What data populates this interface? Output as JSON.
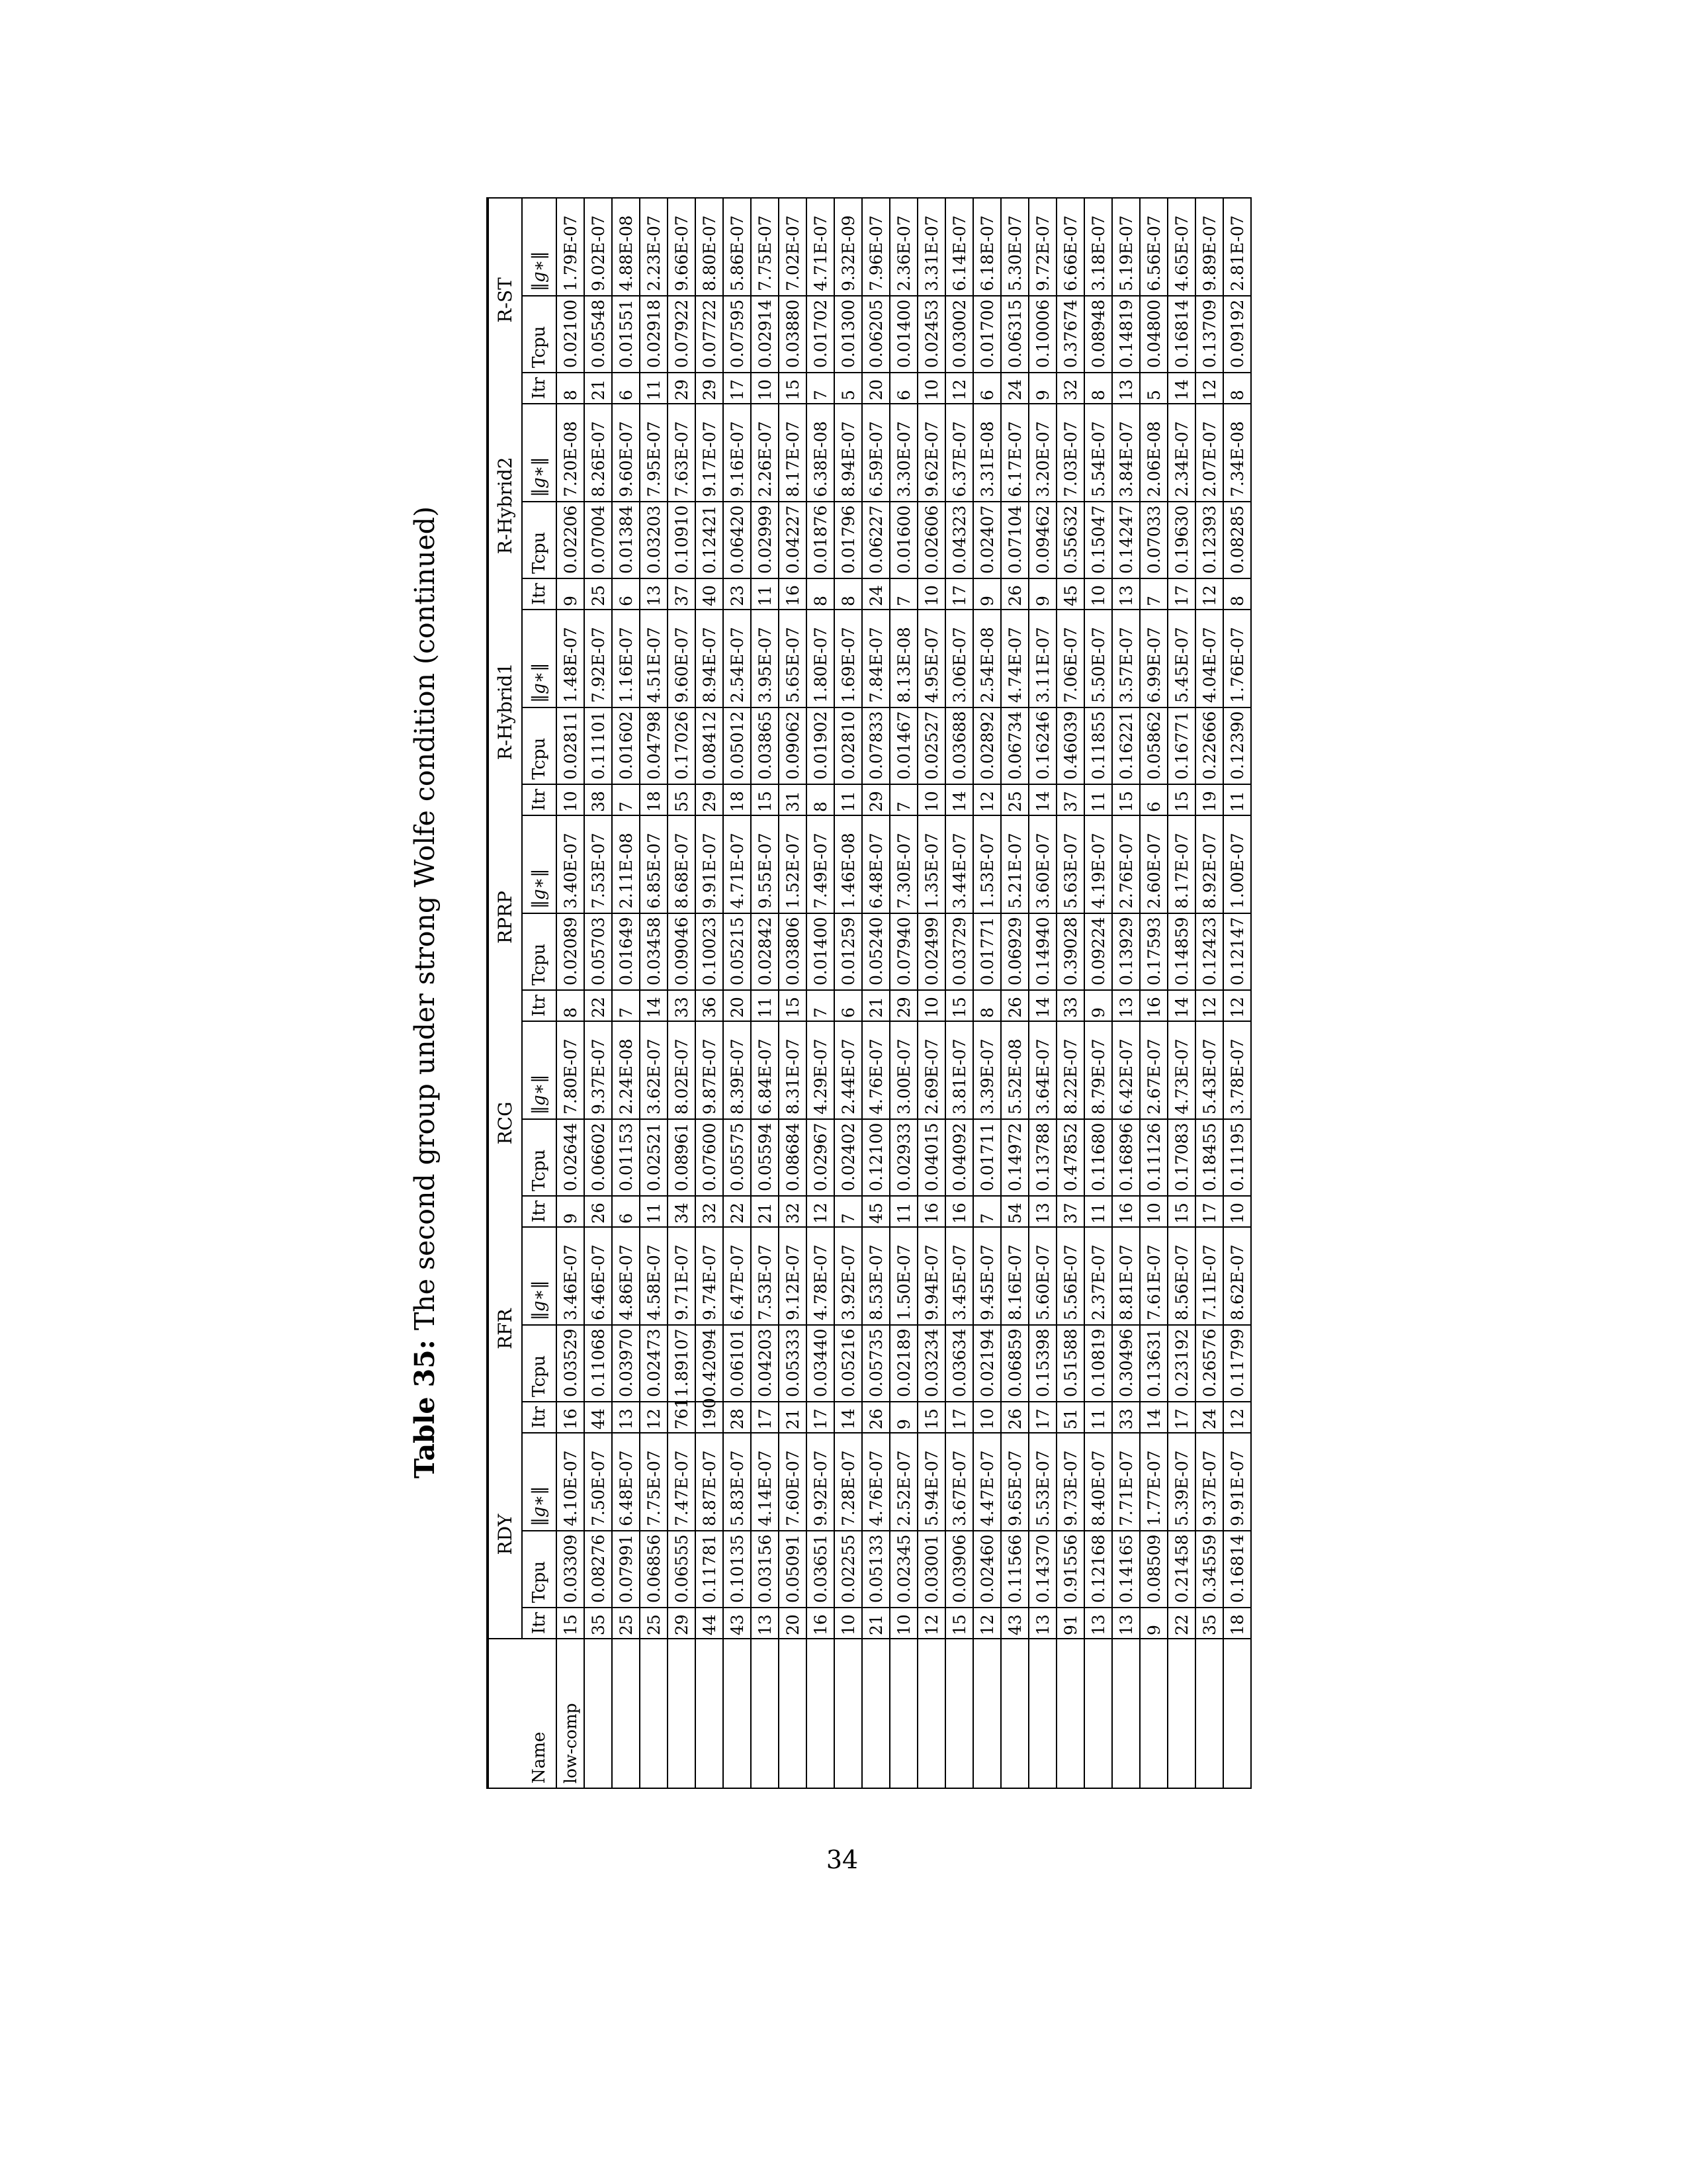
{
  "page_number": "34",
  "caption": {
    "label": "Table 35:",
    "text": "The second group under strong Wolfe condition (continued)"
  },
  "table": {
    "name_header": "Name",
    "methods": [
      "RDY",
      "RFR",
      "RCG",
      "RPRP",
      "R-Hybrid1",
      "R-Hybrid2",
      "R-ST"
    ],
    "metrics": [
      "Itr",
      "Tcpu",
      "‖g∗‖"
    ],
    "rows": [
      {
        "name": "low-comp",
        "cells": [
          "15",
          "0.03309",
          "4.10E-07",
          "16",
          "0.03529",
          "3.46E-07",
          "9",
          "0.02644",
          "7.80E-07",
          "8",
          "0.02089",
          "3.40E-07",
          "10",
          "0.02811",
          "1.48E-07",
          "9",
          "0.02206",
          "7.20E-08",
          "8",
          "0.02100",
          "1.79E-07"
        ]
      },
      {
        "name": "",
        "cells": [
          "35",
          "0.08276",
          "7.50E-07",
          "44",
          "0.11068",
          "6.46E-07",
          "26",
          "0.06602",
          "9.37E-07",
          "22",
          "0.05703",
          "7.53E-07",
          "38",
          "0.11101",
          "7.92E-07",
          "25",
          "0.07004",
          "8.26E-07",
          "21",
          "0.05548",
          "9.02E-07"
        ]
      },
      {
        "name": "",
        "cells": [
          "25",
          "0.07991",
          "6.48E-07",
          "13",
          "0.03970",
          "4.86E-07",
          "6",
          "0.01153",
          "2.24E-08",
          "7",
          "0.01649",
          "2.11E-08",
          "7",
          "0.01602",
          "1.16E-07",
          "6",
          "0.01384",
          "9.60E-07",
          "6",
          "0.01551",
          "4.88E-08"
        ]
      },
      {
        "name": "",
        "cells": [
          "25",
          "0.06856",
          "7.75E-07",
          "12",
          "0.02473",
          "4.58E-07",
          "11",
          "0.02521",
          "3.62E-07",
          "14",
          "0.03458",
          "6.85E-07",
          "18",
          "0.04798",
          "4.51E-07",
          "13",
          "0.03203",
          "7.95E-07",
          "11",
          "0.02918",
          "2.23E-07"
        ]
      },
      {
        "name": "",
        "cells": [
          "29",
          "0.06555",
          "7.47E-07",
          "761",
          "1.89107",
          "9.71E-07",
          "34",
          "0.08961",
          "8.02E-07",
          "33",
          "0.09046",
          "8.68E-07",
          "55",
          "0.17026",
          "9.60E-07",
          "37",
          "0.10910",
          "7.63E-07",
          "29",
          "0.07922",
          "9.66E-07"
        ]
      },
      {
        "name": "",
        "cells": [
          "44",
          "0.11781",
          "8.87E-07",
          "190",
          "0.42094",
          "9.74E-07",
          "32",
          "0.07600",
          "9.87E-07",
          "36",
          "0.10023",
          "9.91E-07",
          "29",
          "0.08412",
          "8.94E-07",
          "40",
          "0.12421",
          "9.17E-07",
          "29",
          "0.07722",
          "8.80E-07"
        ]
      },
      {
        "name": "",
        "cells": [
          "43",
          "0.10135",
          "5.83E-07",
          "28",
          "0.06101",
          "6.47E-07",
          "22",
          "0.05575",
          "8.39E-07",
          "20",
          "0.05215",
          "4.71E-07",
          "18",
          "0.05012",
          "2.54E-07",
          "23",
          "0.06420",
          "9.16E-07",
          "17",
          "0.07595",
          "5.86E-07"
        ]
      },
      {
        "name": "",
        "cells": [
          "13",
          "0.03156",
          "4.14E-07",
          "17",
          "0.04203",
          "7.53E-07",
          "21",
          "0.05594",
          "6.84E-07",
          "11",
          "0.02842",
          "9.55E-07",
          "15",
          "0.03865",
          "3.95E-07",
          "11",
          "0.02999",
          "2.26E-07",
          "10",
          "0.02914",
          "7.75E-07"
        ]
      },
      {
        "name": "",
        "cells": [
          "20",
          "0.05091",
          "7.60E-07",
          "21",
          "0.05333",
          "9.12E-07",
          "32",
          "0.08684",
          "8.31E-07",
          "15",
          "0.03806",
          "1.52E-07",
          "31",
          "0.09062",
          "5.65E-07",
          "16",
          "0.04227",
          "8.17E-07",
          "15",
          "0.03880",
          "7.02E-07"
        ]
      },
      {
        "name": "",
        "cells": [
          "16",
          "0.03651",
          "9.92E-07",
          "17",
          "0.03440",
          "4.78E-07",
          "12",
          "0.02967",
          "4.29E-07",
          "7",
          "0.01400",
          "7.49E-07",
          "8",
          "0.01902",
          "1.80E-07",
          "8",
          "0.01876",
          "6.38E-08",
          "7",
          "0.01702",
          "4.71E-07"
        ]
      },
      {
        "name": "",
        "cells": [
          "10",
          "0.02255",
          "7.28E-07",
          "14",
          "0.05216",
          "3.92E-07",
          "7",
          "0.02402",
          "2.44E-07",
          "6",
          "0.01259",
          "1.46E-08",
          "11",
          "0.02810",
          "1.69E-07",
          "8",
          "0.01796",
          "8.94E-07",
          "5",
          "0.01300",
          "9.32E-09"
        ]
      },
      {
        "name": "",
        "cells": [
          "21",
          "0.05133",
          "4.76E-07",
          "26",
          "0.05735",
          "8.53E-07",
          "45",
          "0.12100",
          "4.76E-07",
          "21",
          "0.05240",
          "6.48E-07",
          "29",
          "0.07833",
          "7.84E-07",
          "24",
          "0.06227",
          "6.59E-07",
          "20",
          "0.06205",
          "7.96E-07"
        ]
      },
      {
        "name": "",
        "cells": [
          "10",
          "0.02345",
          "2.52E-07",
          "9",
          "0.02189",
          "1.50E-07",
          "11",
          "0.02933",
          "3.00E-07",
          "29",
          "0.07940",
          "7.30E-07",
          "7",
          "0.01467",
          "8.13E-08",
          "7",
          "0.01600",
          "3.30E-07",
          "6",
          "0.01400",
          "2.36E-07"
        ]
      },
      {
        "name": "",
        "cells": [
          "12",
          "0.03001",
          "5.94E-07",
          "15",
          "0.03234",
          "9.94E-07",
          "16",
          "0.04015",
          "2.69E-07",
          "10",
          "0.02499",
          "1.35E-07",
          "10",
          "0.02527",
          "4.95E-07",
          "10",
          "0.02606",
          "9.62E-07",
          "10",
          "0.02453",
          "3.31E-07"
        ]
      },
      {
        "name": "",
        "cells": [
          "15",
          "0.03906",
          "3.67E-07",
          "17",
          "0.03634",
          "3.45E-07",
          "16",
          "0.04092",
          "3.81E-07",
          "15",
          "0.03729",
          "3.44E-07",
          "14",
          "0.03688",
          "3.06E-07",
          "17",
          "0.04323",
          "6.37E-07",
          "12",
          "0.03002",
          "6.14E-07"
        ]
      },
      {
        "name": "",
        "cells": [
          "12",
          "0.02460",
          "4.47E-07",
          "10",
          "0.02194",
          "9.45E-07",
          "7",
          "0.01711",
          "3.39E-07",
          "8",
          "0.01771",
          "1.53E-07",
          "12",
          "0.02892",
          "2.54E-08",
          "9",
          "0.02407",
          "3.31E-08",
          "6",
          "0.01700",
          "6.18E-07"
        ]
      },
      {
        "name": "",
        "cells": [
          "43",
          "0.11566",
          "9.65E-07",
          "26",
          "0.06859",
          "8.16E-07",
          "54",
          "0.14972",
          "5.52E-08",
          "26",
          "0.06929",
          "5.21E-07",
          "25",
          "0.06734",
          "4.74E-07",
          "26",
          "0.07104",
          "6.17E-07",
          "24",
          "0.06315",
          "5.30E-07"
        ]
      },
      {
        "name": "",
        "cells": [
          "13",
          "0.14370",
          "5.53E-07",
          "17",
          "0.15398",
          "5.60E-07",
          "13",
          "0.13788",
          "3.64E-07",
          "14",
          "0.14940",
          "3.60E-07",
          "14",
          "0.16246",
          "3.11E-07",
          "9",
          "0.09462",
          "3.20E-07",
          "9",
          "0.10006",
          "9.72E-07"
        ]
      },
      {
        "name": "",
        "cells": [
          "91",
          "0.91556",
          "9.73E-07",
          "51",
          "0.51588",
          "5.56E-07",
          "37",
          "0.47852",
          "8.22E-07",
          "33",
          "0.39028",
          "5.63E-07",
          "37",
          "0.46039",
          "7.06E-07",
          "45",
          "0.55632",
          "7.03E-07",
          "32",
          "0.37674",
          "6.66E-07"
        ]
      },
      {
        "name": "",
        "cells": [
          "13",
          "0.12168",
          "8.40E-07",
          "11",
          "0.10819",
          "2.37E-07",
          "11",
          "0.11680",
          "8.79E-07",
          "9",
          "0.09224",
          "4.19E-07",
          "11",
          "0.11855",
          "5.50E-07",
          "10",
          "0.15047",
          "5.54E-07",
          "8",
          "0.08948",
          "3.18E-07"
        ]
      },
      {
        "name": "",
        "cells": [
          "13",
          "0.14165",
          "7.71E-07",
          "33",
          "0.30496",
          "8.81E-07",
          "16",
          "0.16896",
          "6.42E-07",
          "13",
          "0.13929",
          "2.76E-07",
          "15",
          "0.16221",
          "3.57E-07",
          "13",
          "0.14247",
          "3.84E-07",
          "13",
          "0.14819",
          "5.19E-07"
        ]
      },
      {
        "name": "",
        "cells": [
          "9",
          "0.08509",
          "1.77E-07",
          "14",
          "0.13631",
          "7.61E-07",
          "10",
          "0.11126",
          "2.67E-07",
          "16",
          "0.17593",
          "2.60E-07",
          "6",
          "0.05862",
          "6.99E-07",
          "7",
          "0.07033",
          "2.06E-08",
          "5",
          "0.04800",
          "6.56E-07"
        ]
      },
      {
        "name": "",
        "cells": [
          "22",
          "0.21458",
          "5.39E-07",
          "17",
          "0.23192",
          "8.56E-07",
          "15",
          "0.17083",
          "4.73E-07",
          "14",
          "0.14859",
          "8.17E-07",
          "15",
          "0.16771",
          "5.45E-07",
          "17",
          "0.19630",
          "2.34E-07",
          "14",
          "0.16814",
          "4.65E-07"
        ]
      },
      {
        "name": "",
        "cells": [
          "35",
          "0.34559",
          "9.37E-07",
          "24",
          "0.26576",
          "7.11E-07",
          "17",
          "0.18455",
          "5.43E-07",
          "12",
          "0.12423",
          "8.92E-07",
          "19",
          "0.22666",
          "4.04E-07",
          "12",
          "0.12393",
          "2.07E-07",
          "12",
          "0.13709",
          "9.89E-07"
        ]
      },
      {
        "name": "",
        "cells": [
          "18",
          "0.16814",
          "9.91E-07",
          "12",
          "0.11799",
          "8.62E-07",
          "10",
          "0.11195",
          "3.78E-07",
          "12",
          "0.12147",
          "1.00E-07",
          "11",
          "0.12390",
          "1.76E-07",
          "8",
          "0.08285",
          "7.34E-08",
          "8",
          "0.09192",
          "2.81E-07"
        ]
      }
    ]
  }
}
